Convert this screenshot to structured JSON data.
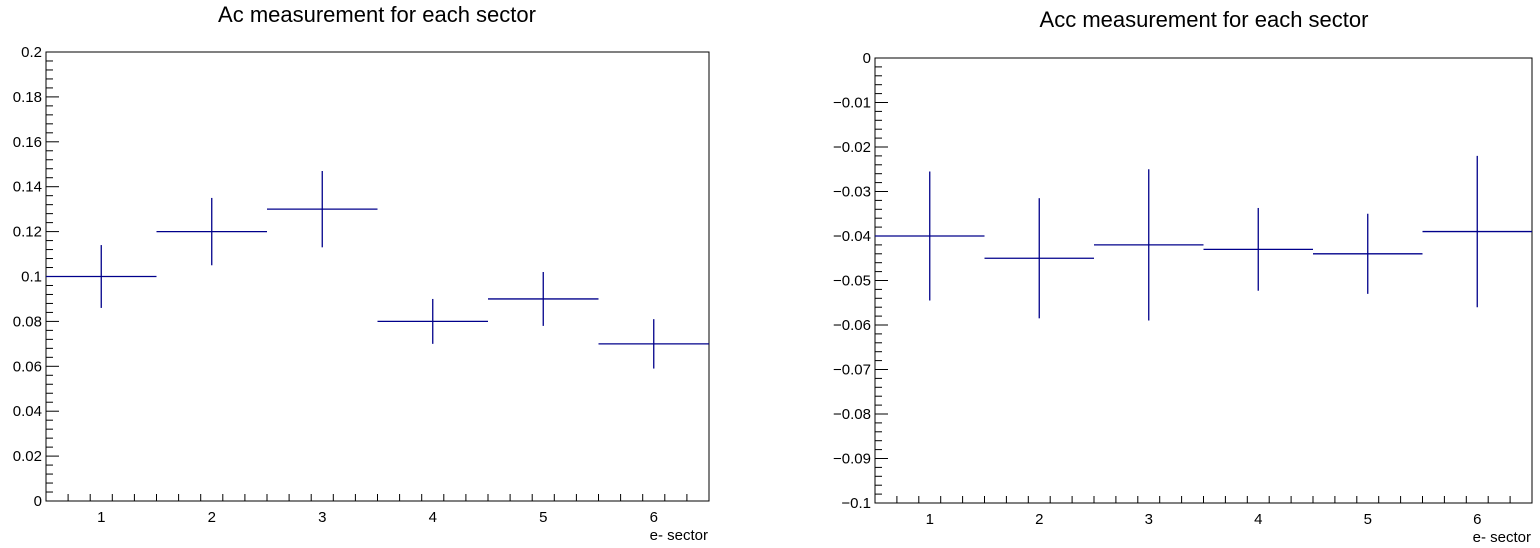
{
  "chart_data": [
    {
      "type": "scatter",
      "title": "Ac measurement for each sector",
      "xlabel": "e- sector",
      "ylabel": "",
      "xlim": [
        0.5,
        6.5
      ],
      "ylim": [
        0,
        0.2
      ],
      "x_ticks": [
        1,
        2,
        3,
        4,
        5,
        6
      ],
      "y_ticks": [
        0,
        0.02,
        0.04,
        0.06,
        0.08,
        0.1,
        0.12,
        0.14,
        0.16,
        0.18,
        0.2
      ],
      "y_tick_labels": [
        "0",
        "0.02",
        "0.04",
        "0.06",
        "0.08",
        "0.1",
        "0.12",
        "0.14",
        "0.16",
        "0.18",
        "0.2"
      ],
      "grid": false,
      "color": "#00008b",
      "series": [
        {
          "x": [
            1,
            2,
            3,
            4,
            5,
            6
          ],
          "values": [
            0.1,
            0.12,
            0.13,
            0.08,
            0.09,
            0.07
          ],
          "x_err": [
            0.5,
            0.5,
            0.5,
            0.5,
            0.5,
            0.5
          ],
          "y_err": [
            0.014,
            0.015,
            0.017,
            0.01,
            0.012,
            0.011
          ]
        }
      ]
    },
    {
      "type": "scatter",
      "title": "Acc measurement for each sector",
      "xlabel": "e- sector",
      "ylabel": "",
      "xlim": [
        0.5,
        6.5
      ],
      "ylim": [
        -0.1,
        0
      ],
      "x_ticks": [
        1,
        2,
        3,
        4,
        5,
        6
      ],
      "y_ticks": [
        0,
        -0.01,
        -0.02,
        -0.03,
        -0.04,
        -0.05,
        -0.06,
        -0.07,
        -0.08,
        -0.09,
        -0.1
      ],
      "y_tick_labels": [
        "0",
        "−0.01",
        "−0.02",
        "−0.03",
        "−0.04",
        "−0.05",
        "−0.06",
        "−0.07",
        "−0.08",
        "−0.09",
        "−0.1"
      ],
      "grid": false,
      "color": "#00008b",
      "series": [
        {
          "x": [
            1,
            2,
            3,
            4,
            5,
            6
          ],
          "values": [
            -0.04,
            -0.045,
            -0.042,
            -0.043,
            -0.044,
            -0.039
          ],
          "x_err": [
            0.5,
            0.5,
            0.5,
            0.5,
            0.5,
            0.5
          ],
          "y_err": [
            0.0145,
            0.0135,
            0.017,
            0.0093,
            0.009,
            0.017
          ]
        }
      ]
    }
  ]
}
